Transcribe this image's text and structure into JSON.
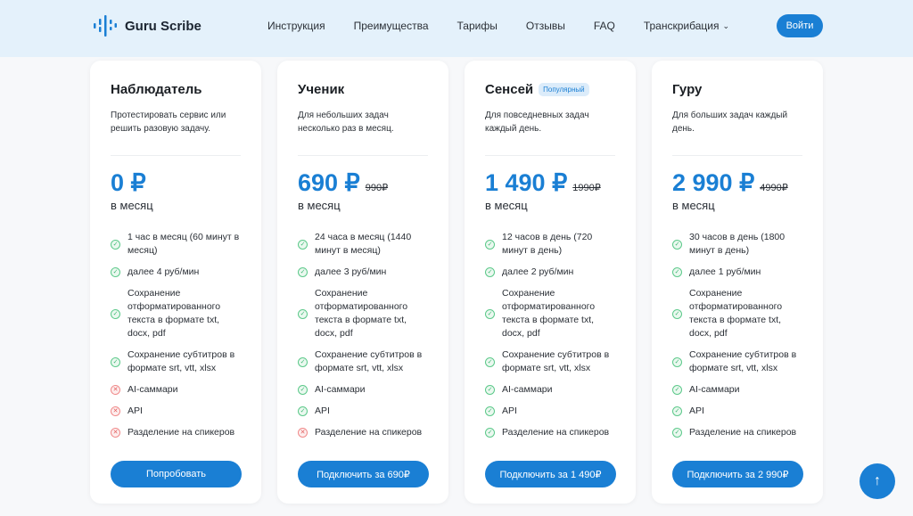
{
  "header": {
    "brand": "Guru Scribe",
    "nav": [
      "Инструкция",
      "Преимущества",
      "Тарифы",
      "Отзывы",
      "FAQ",
      "Транскрибация"
    ],
    "login": "Войти"
  },
  "colors": {
    "accent": "#1a7fd4",
    "ok": "#3db874",
    "no": "#e25c5c"
  },
  "plans": [
    {
      "name": "Наблюдатель",
      "badge": "",
      "desc": "Протестировать сервис или решить разовую задачу.",
      "price": "0 ₽",
      "old": "",
      "per": "в месяц",
      "cta": "Попробовать",
      "features": [
        {
          "t": "1 час в месяц (60 минут в месяц)",
          "ok": true
        },
        {
          "t": "далее 4 руб/мин",
          "ok": true
        },
        {
          "t": "Сохранение отформатированного текста в формате txt, docx, pdf",
          "ok": true
        },
        {
          "t": "Сохранение субтитров в формате srt, vtt, xlsx",
          "ok": true
        },
        {
          "t": "AI-саммари",
          "ok": false
        },
        {
          "t": "API",
          "ok": false
        },
        {
          "t": "Разделение на спикеров",
          "ok": false
        }
      ]
    },
    {
      "name": "Ученик",
      "badge": "",
      "desc": "Для небольших задач несколько раз в месяц.",
      "price": "690 ₽",
      "old": "990₽",
      "per": "в месяц",
      "cta": "Подключить за 690₽",
      "features": [
        {
          "t": "24 часа в месяц (1440 минут в месяц)",
          "ok": true
        },
        {
          "t": "далее 3 руб/мин",
          "ok": true
        },
        {
          "t": "Сохранение отформатированного текста в формате txt, docx, pdf",
          "ok": true
        },
        {
          "t": "Сохранение субтитров в формате srt, vtt, xlsx",
          "ok": true
        },
        {
          "t": "AI-саммари",
          "ok": true
        },
        {
          "t": "API",
          "ok": true
        },
        {
          "t": "Разделение на спикеров",
          "ok": false
        }
      ]
    },
    {
      "name": "Сенсей",
      "badge": "Популярный",
      "desc": "Для повседневных задач каждый день.",
      "price": "1 490 ₽",
      "old": "1990₽",
      "per": "в месяц",
      "cta": "Подключить за 1 490₽",
      "features": [
        {
          "t": "12 часов в день (720 минут в день)",
          "ok": true
        },
        {
          "t": "далее 2 руб/мин",
          "ok": true
        },
        {
          "t": "Сохранение отформатированного текста в формате txt, docx, pdf",
          "ok": true
        },
        {
          "t": "Сохранение субтитров в формате srt, vtt, xlsx",
          "ok": true
        },
        {
          "t": "AI-саммари",
          "ok": true
        },
        {
          "t": "API",
          "ok": true
        },
        {
          "t": "Разделение на спикеров",
          "ok": true
        }
      ]
    },
    {
      "name": "Гуру",
      "badge": "",
      "desc": "Для больших задач каждый день.",
      "price": "2 990 ₽",
      "old": "4990₽",
      "per": "в месяц",
      "cta": "Подключить за 2 990₽",
      "features": [
        {
          "t": "30 часов в день (1800 минут в день)",
          "ok": true
        },
        {
          "t": "далее 1 руб/мин",
          "ok": true
        },
        {
          "t": "Сохранение отформатированного текста в формате txt, docx, pdf",
          "ok": true
        },
        {
          "t": "Сохранение субтитров в формате srt, vtt, xlsx",
          "ok": true
        },
        {
          "t": "AI-саммари",
          "ok": true
        },
        {
          "t": "API",
          "ok": true
        },
        {
          "t": "Разделение на спикеров",
          "ok": true
        }
      ]
    }
  ]
}
